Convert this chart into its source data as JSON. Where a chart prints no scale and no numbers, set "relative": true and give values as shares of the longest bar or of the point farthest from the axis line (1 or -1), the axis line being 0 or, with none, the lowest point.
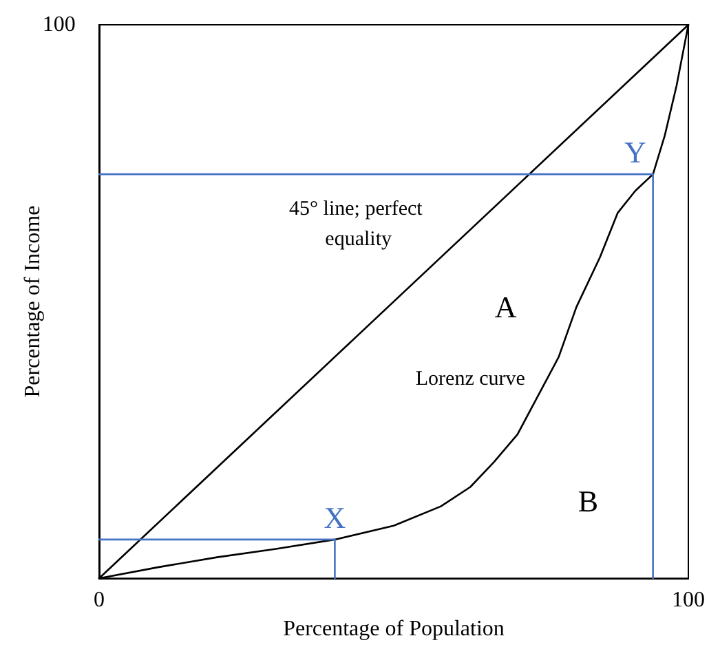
{
  "chart_data": {
    "type": "line",
    "xlabel": "Percentage of Population",
    "ylabel": "Percentage of Income",
    "xlim": [
      0,
      100
    ],
    "xticks": [
      0,
      100
    ],
    "relative": true,
    "grid": false,
    "marker": "none",
    "line_style": "solid",
    "series": [
      {
        "color": "#000000",
        "x": [
          0,
          100
        ],
        "values": [
          0,
          1
        ]
      },
      {
        "color": "#000000",
        "x": [
          0,
          10,
          20,
          30,
          40,
          50,
          58,
          63,
          67,
          71,
          74,
          78,
          81,
          85,
          88,
          91,
          94,
          96,
          98,
          100
        ],
        "values": [
          0,
          0.02,
          0.038,
          0.053,
          0.07,
          0.095,
          0.13,
          0.165,
          0.21,
          0.26,
          0.32,
          0.4,
          0.49,
          0.58,
          0.66,
          0.7,
          0.73,
          0.8,
          0.89,
          1
        ]
      },
      {
        "color": "#4472c4",
        "x": [
          0,
          40,
          40
        ],
        "values": [
          0.07,
          0.07,
          0
        ]
      },
      {
        "color": "#4472c4",
        "x": [
          0,
          94,
          94
        ],
        "values": [
          0.73,
          0.73,
          0
        ]
      }
    ],
    "annotations": [
      "100",
      "X",
      "Y",
      "A",
      "B",
      "45° line; perfect equality",
      "Lorenz curve"
    ]
  }
}
